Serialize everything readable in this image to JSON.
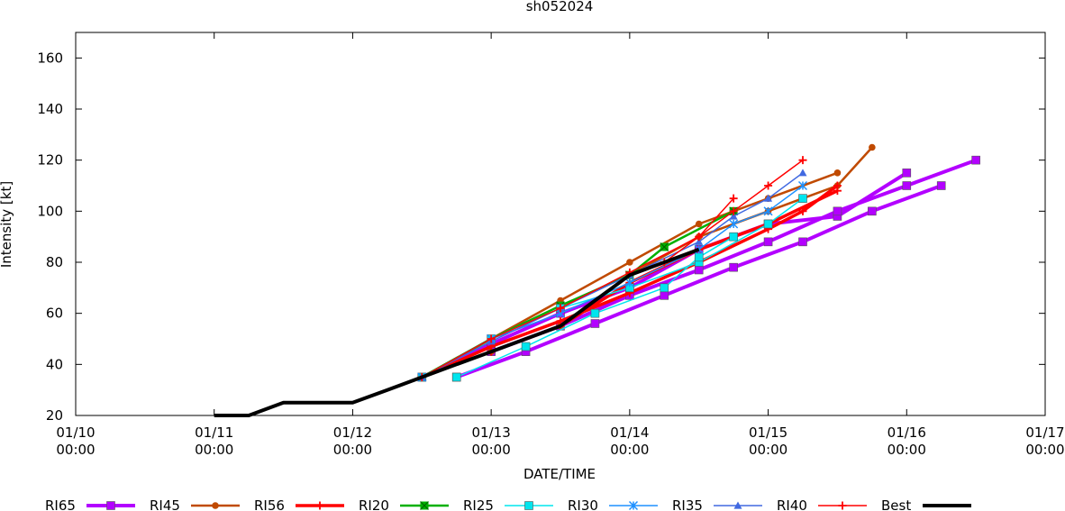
{
  "chart_data": {
    "type": "line",
    "title": "sh052024",
    "xlabel": "DATE/TIME",
    "ylabel": "Intensity [kt]",
    "xlim": [
      "01/10 00:00",
      "01/17 00:00"
    ],
    "ylim": [
      20,
      170
    ],
    "grid": false,
    "legend_position": "bottom",
    "x_ticks": [
      {
        "line1": "01/10",
        "line2": "00:00",
        "value": "01/10 00:00"
      },
      {
        "line1": "01/11",
        "line2": "00:00",
        "value": "01/11 00:00"
      },
      {
        "line1": "01/12",
        "line2": "00:00",
        "value": "01/12 00:00"
      },
      {
        "line1": "01/13",
        "line2": "00:00",
        "value": "01/13 00:00"
      },
      {
        "line1": "01/14",
        "line2": "00:00",
        "value": "01/14 00:00"
      },
      {
        "line1": "01/15",
        "line2": "00:00",
        "value": "01/15 00:00"
      },
      {
        "line1": "01/16",
        "line2": "00:00",
        "value": "01/16 00:00"
      },
      {
        "line1": "01/17",
        "line2": "00:00",
        "value": "01/17 00:00"
      }
    ],
    "y_ticks": [
      "20",
      "40",
      "60",
      "80",
      "100",
      "120",
      "140",
      "160"
    ],
    "series": [
      {
        "name": "RI65",
        "color": "#b300ff",
        "marker": "square",
        "width": 4,
        "segments": [
          [
            [
              "01/12 12:00",
              35
            ],
            [
              "01/13 00:00",
              48
            ],
            [
              "01/13 12:00",
              60
            ],
            [
              "01/14 00:00",
              70
            ],
            [
              "01/14 12:00",
              85
            ],
            [
              "01/15 00:00",
              95
            ],
            [
              "01/15 12:00",
              98
            ],
            [
              "01/16 00:00",
              115
            ]
          ],
          [
            [
              "01/12 18:00",
              35
            ],
            [
              "01/13 06:00",
              45
            ],
            [
              "01/13 18:00",
              56
            ],
            [
              "01/14 06:00",
              67
            ],
            [
              "01/14 18:00",
              78
            ],
            [
              "01/15 06:00",
              88
            ],
            [
              "01/15 18:00",
              100
            ],
            [
              "01/16 06:00",
              110
            ]
          ],
          [
            [
              "01/13 00:00",
              45
            ],
            [
              "01/13 12:00",
              55
            ],
            [
              "01/14 00:00",
              67
            ],
            [
              "01/14 12:00",
              77
            ],
            [
              "01/15 00:00",
              88
            ],
            [
              "01/15 12:00",
              100
            ],
            [
              "01/16 00:00",
              110
            ],
            [
              "01/16 12:00",
              120
            ]
          ]
        ]
      },
      {
        "name": "RI45",
        "color": "#c04a00",
        "marker": "circle",
        "width": 2.5,
        "segments": [
          [
            [
              "01/12 12:00",
              35
            ],
            [
              "01/13 00:00",
              50
            ],
            [
              "01/13 12:00",
              65
            ],
            [
              "01/14 00:00",
              80
            ],
            [
              "01/14 12:00",
              95
            ],
            [
              "01/15 00:00",
              105
            ],
            [
              "01/15 12:00",
              115
            ]
          ],
          [
            [
              "01/13 00:00",
              45
            ],
            [
              "01/13 12:00",
              55
            ],
            [
              "01/14 00:00",
              75
            ],
            [
              "01/14 12:00",
              90
            ],
            [
              "01/15 00:00",
              100
            ],
            [
              "01/15 12:00",
              110
            ],
            [
              "01/15 18:00",
              125
            ]
          ]
        ]
      },
      {
        "name": "RI56",
        "color": "#ff0000",
        "marker": "plus",
        "width": 3.5,
        "segments": [
          [
            [
              "01/12 12:00",
              35
            ],
            [
              "01/13 00:00",
              47
            ],
            [
              "01/13 12:00",
              57
            ],
            [
              "01/14 00:00",
              68
            ],
            [
              "01/14 12:00",
              80
            ],
            [
              "01/15 00:00",
              93
            ],
            [
              "01/15 06:00",
              100
            ],
            [
              "01/15 12:00",
              110
            ]
          ],
          [
            [
              "01/13 00:00",
              45
            ],
            [
              "01/13 12:00",
              55
            ],
            [
              "01/14 00:00",
              72
            ],
            [
              "01/14 12:00",
              85
            ],
            [
              "01/15 00:00",
              95
            ],
            [
              "01/15 12:00",
              108
            ]
          ]
        ]
      },
      {
        "name": "RI20",
        "color": "#00b000",
        "marker": "square-x",
        "width": 2.5,
        "segments": [
          [
            [
              "01/12 12:00",
              35
            ],
            [
              "01/13 00:00",
              50
            ],
            [
              "01/13 12:00",
              63
            ],
            [
              "01/14 00:00",
              75
            ],
            [
              "01/14 06:00",
              86
            ],
            [
              "01/14 18:00",
              100
            ]
          ]
        ]
      },
      {
        "name": "RI25",
        "color": "#00e5ee",
        "marker": "square",
        "width": 1.5,
        "segments": [
          [
            [
              "01/12 12:00",
              35
            ],
            [
              "01/13 00:00",
              50
            ],
            [
              "01/13 12:00",
              62
            ],
            [
              "01/14 00:00",
              70
            ],
            [
              "01/14 12:00",
              80
            ],
            [
              "01/15 00:00",
              95
            ],
            [
              "01/15 06:00",
              105
            ]
          ],
          [
            [
              "01/12 18:00",
              35
            ],
            [
              "01/13 06:00",
              47
            ],
            [
              "01/13 18:00",
              60
            ],
            [
              "01/14 06:00",
              70
            ],
            [
              "01/14 12:00",
              82
            ],
            [
              "01/14 18:00",
              90
            ]
          ]
        ]
      },
      {
        "name": "RI30",
        "color": "#1e90ff",
        "marker": "asterisk",
        "width": 1.5,
        "segments": [
          [
            [
              "01/12 12:00",
              35
            ],
            [
              "01/13 00:00",
              50
            ],
            [
              "01/13 12:00",
              60
            ],
            [
              "01/14 00:00",
              72
            ],
            [
              "01/14 12:00",
              85
            ],
            [
              "01/14 18:00",
              95
            ],
            [
              "01/15 00:00",
              100
            ],
            [
              "01/15 06:00",
              110
            ]
          ]
        ]
      },
      {
        "name": "RI35",
        "color": "#4169e1",
        "marker": "triangle",
        "width": 1.5,
        "segments": [
          [
            [
              "01/12 12:00",
              35
            ],
            [
              "01/13 00:00",
              49
            ],
            [
              "01/13 12:00",
              62
            ],
            [
              "01/14 00:00",
              75
            ],
            [
              "01/14 12:00",
              88
            ],
            [
              "01/14 18:00",
              98
            ],
            [
              "01/15 00:00",
              105
            ],
            [
              "01/15 06:00",
              115
            ]
          ]
        ]
      },
      {
        "name": "RI40",
        "color": "#ff0000",
        "marker": "plus",
        "width": 1.5,
        "segments": [
          [
            [
              "01/12 12:00",
              35
            ],
            [
              "01/13 00:00",
              50
            ],
            [
              "01/13 12:00",
              62
            ],
            [
              "01/14 00:00",
              76
            ],
            [
              "01/14 12:00",
              90
            ],
            [
              "01/14 18:00",
              105
            ]
          ],
          [
            [
              "01/14 06:00",
              80
            ],
            [
              "01/14 18:00",
              100
            ],
            [
              "01/15 00:00",
              110
            ],
            [
              "01/15 06:00",
              120
            ]
          ]
        ]
      },
      {
        "name": "Best",
        "color": "#000000",
        "marker": "none",
        "width": 4,
        "segments": [
          [
            [
              "01/11 00:00",
              20
            ],
            [
              "01/11 06:00",
              20
            ],
            [
              "01/11 12:00",
              25
            ],
            [
              "01/11 18:00",
              25
            ],
            [
              "01/12 00:00",
              25
            ],
            [
              "01/12 06:00",
              30
            ],
            [
              "01/12 12:00",
              35
            ],
            [
              "01/12 18:00",
              40
            ],
            [
              "01/13 00:00",
              45
            ],
            [
              "01/13 06:00",
              50
            ],
            [
              "01/13 12:00",
              55
            ],
            [
              "01/13 18:00",
              65
            ],
            [
              "01/14 00:00",
              75
            ],
            [
              "01/14 06:00",
              80
            ],
            [
              "01/14 12:00",
              85
            ]
          ]
        ]
      }
    ]
  }
}
